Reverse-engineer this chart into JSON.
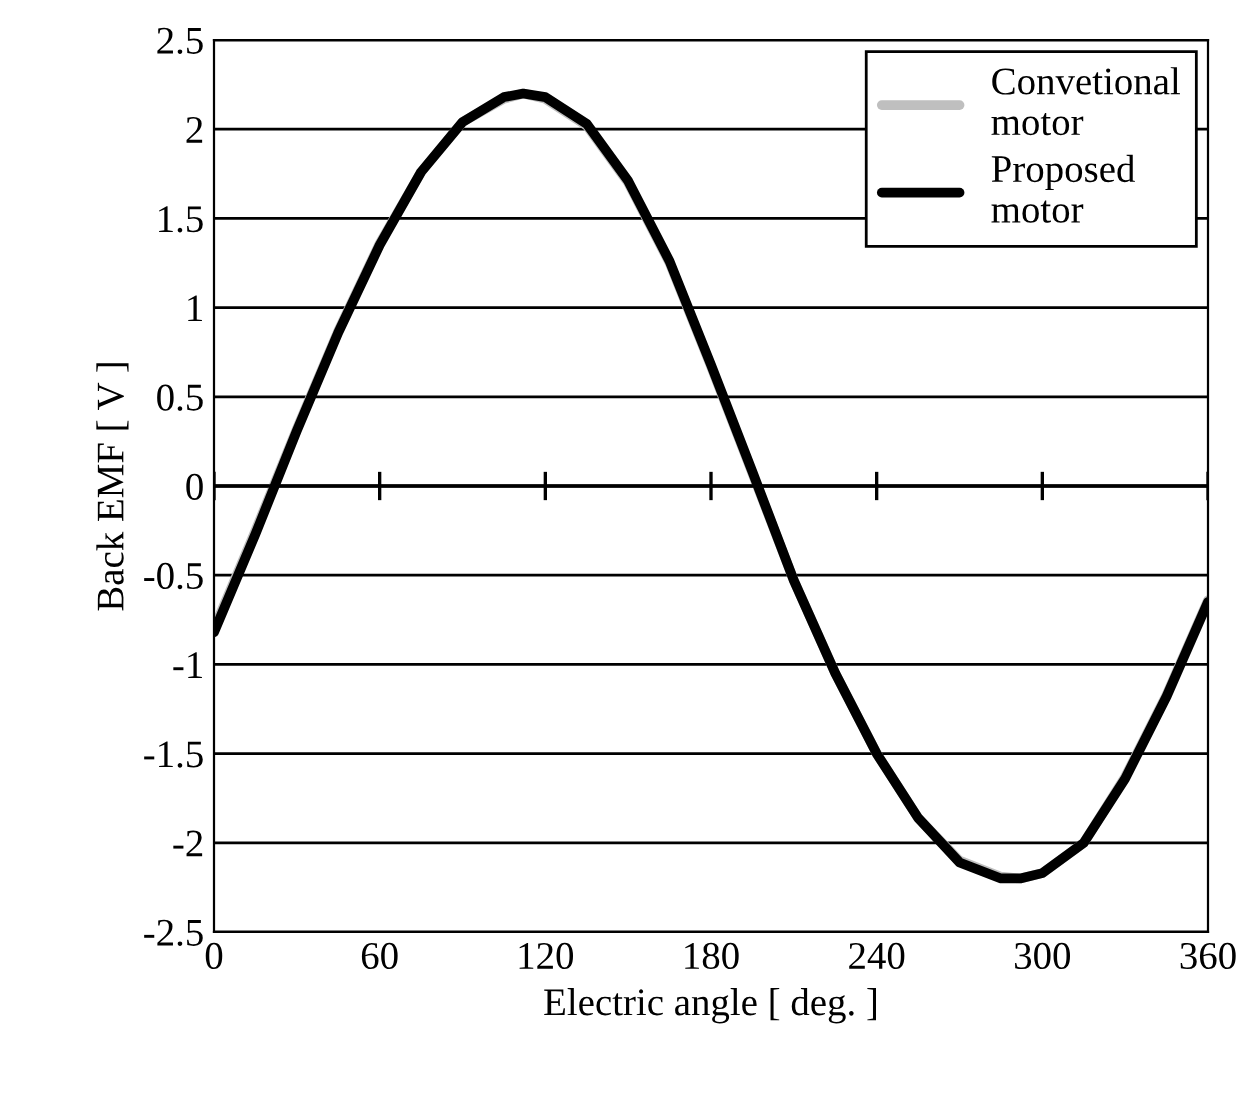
{
  "chart_data": {
    "type": "line",
    "xlabel": "Electric angle [ deg. ]",
    "ylabel": "Back EMF [ V ]",
    "x": [
      0,
      15,
      30,
      45,
      60,
      75,
      90,
      105,
      112,
      120,
      135,
      150,
      165,
      180,
      195,
      210,
      225,
      240,
      255,
      270,
      285,
      292,
      300,
      315,
      330,
      345,
      360
    ],
    "series": [
      {
        "name": "Convetional\nmotor",
        "color": "#bfbfbf",
        "values": [
          -0.8,
          -0.25,
          0.32,
          0.87,
          1.36,
          1.76,
          2.04,
          2.17,
          2.2,
          2.17,
          2.02,
          1.7,
          1.25,
          0.67,
          0.07,
          -0.53,
          -1.05,
          -1.5,
          -1.86,
          -2.1,
          -2.19,
          -2.2,
          -2.17,
          -2.0,
          -1.63,
          -1.17,
          -0.64
        ]
      },
      {
        "name": "Proposed\nmotor",
        "color": "#000000",
        "values": [
          -0.82,
          -0.27,
          0.31,
          0.86,
          1.35,
          1.76,
          2.04,
          2.18,
          2.2,
          2.18,
          2.03,
          1.71,
          1.26,
          0.68,
          0.08,
          -0.53,
          -1.05,
          -1.5,
          -1.86,
          -2.11,
          -2.2,
          -2.2,
          -2.17,
          -2.0,
          -1.64,
          -1.18,
          -0.65
        ]
      }
    ],
    "xlim": [
      0,
      360
    ],
    "xticks": [
      0,
      60,
      120,
      180,
      240,
      300,
      360
    ],
    "ylim": [
      -2.5,
      2.5
    ],
    "yticks": [
      -2.5,
      -2,
      -1.5,
      -1,
      -0.5,
      0,
      0.5,
      1,
      1.5,
      2,
      2.5
    ],
    "grid": "y",
    "legend": "top right",
    "marker": "none",
    "line_style": "solid"
  }
}
